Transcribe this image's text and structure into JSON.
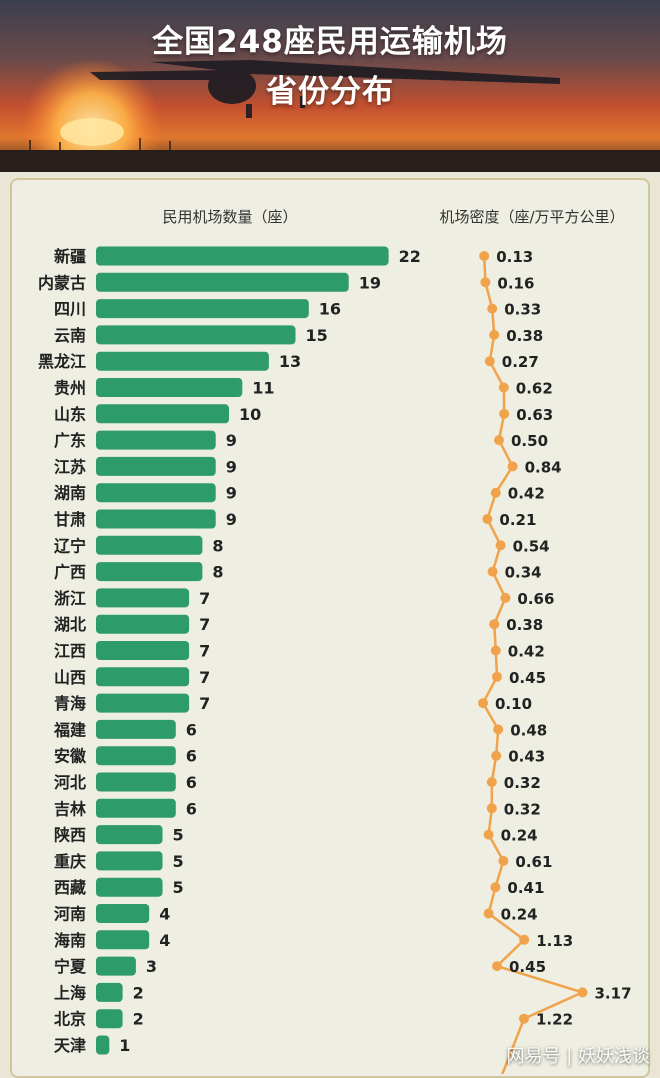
{
  "title_line1": "全国248座民用运输机场",
  "title_line2": "省份分布",
  "watermark": "网易号 | 妖妖浅谈",
  "colors": {
    "bar": "#2e9b6b",
    "density": "#f0a34a",
    "background": "#efeee2",
    "border": "#d2c69e"
  },
  "chart_data": {
    "type": "bar",
    "orientation": "horizontal",
    "categories": [
      "新疆",
      "内蒙古",
      "四川",
      "云南",
      "黑龙江",
      "贵州",
      "山东",
      "广东",
      "江苏",
      "湖南",
      "甘肃",
      "辽宁",
      "广西",
      "浙江",
      "湖北",
      "江西",
      "山西",
      "青海",
      "福建",
      "安徽",
      "河北",
      "吉林",
      "陕西",
      "重庆",
      "西藏",
      "河南",
      "海南",
      "宁夏",
      "上海",
      "北京",
      "天津"
    ],
    "series": [
      {
        "name": "民用机场数量（座）",
        "type": "bar",
        "values": [
          22,
          19,
          16,
          15,
          13,
          11,
          10,
          9,
          9,
          9,
          9,
          8,
          8,
          7,
          7,
          7,
          7,
          7,
          6,
          6,
          6,
          6,
          5,
          5,
          5,
          4,
          4,
          3,
          2,
          2,
          1
        ],
        "value_labels": [
          "22",
          "19",
          "16",
          "15",
          "13",
          "11",
          "10",
          "9",
          "9",
          "9",
          "9",
          "8",
          "8",
          "7",
          "7",
          "7",
          "7",
          "7",
          "6",
          "6",
          "6",
          "6",
          "5",
          "5",
          "5",
          "4",
          "4",
          "3",
          "2",
          "2",
          "1"
        ]
      },
      {
        "name": "机场密度（座/万平方公里）",
        "type": "line",
        "values": [
          0.13,
          0.16,
          0.33,
          0.38,
          0.27,
          0.62,
          0.63,
          0.5,
          0.84,
          0.42,
          0.21,
          0.54,
          0.34,
          0.66,
          0.38,
          0.42,
          0.45,
          0.1,
          0.48,
          0.43,
          0.32,
          0.32,
          0.24,
          0.61,
          0.41,
          0.24,
          1.13,
          0.45,
          3.17,
          1.22,
          null
        ],
        "value_labels": [
          "0.13",
          "0.16",
          "0.33",
          "0.38",
          "0.27",
          "0.62",
          "0.63",
          "0.50",
          "0.84",
          "0.42",
          "0.21",
          "0.54",
          "0.34",
          "0.66",
          "0.38",
          "0.42",
          "0.45",
          "0.10",
          "0.48",
          "0.43",
          "0.32",
          "0.32",
          "0.24",
          "0.61",
          "0.41",
          "0.24",
          "1.13",
          "0.45",
          "3.17",
          "1.22",
          ""
        ]
      }
    ]
  }
}
